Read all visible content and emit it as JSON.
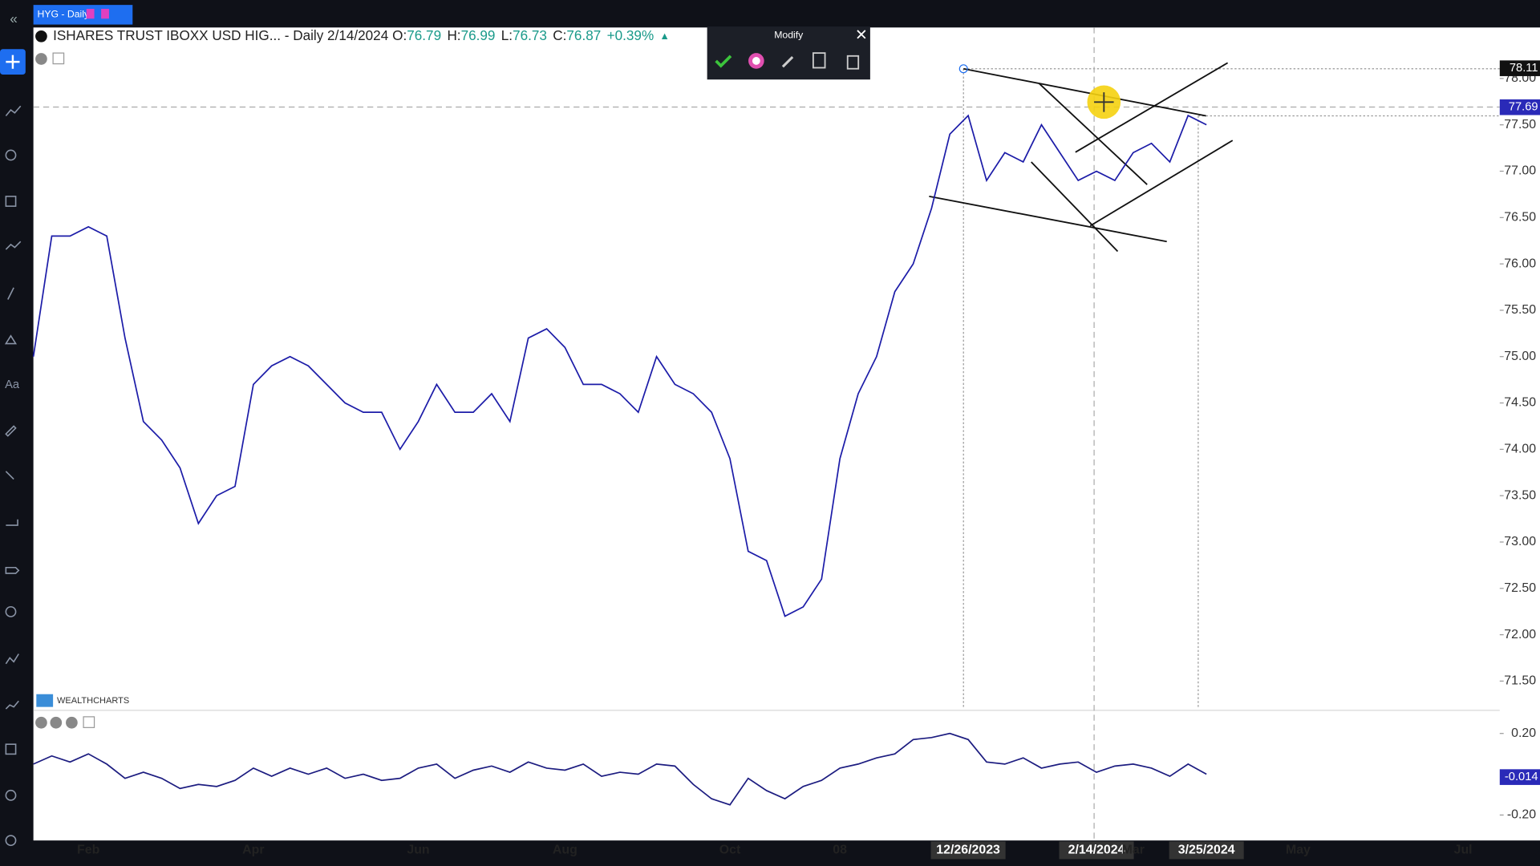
{
  "tab": {
    "title": "HYG - Daily"
  },
  "header": {
    "symbol": "ISHARES TRUST IBOXX USD HIG... - Daily 2/14/2024",
    "ohlc": [
      {
        "label": "O:",
        "value": "76.79"
      },
      {
        "label": "H:",
        "value": "76.99"
      },
      {
        "label": "L:",
        "value": "76.73"
      },
      {
        "label": "C:",
        "value": "76.87"
      }
    ],
    "change": "+0.39%"
  },
  "toolbar": {
    "title": "Modify"
  },
  "watermark": "WEALTHCHARTS",
  "chart_data": [
    {
      "type": "line",
      "categories": [
        null,
        null,
        null,
        "Feb",
        null,
        null,
        null,
        null,
        null,
        null,
        null,
        null,
        "Apr",
        null,
        null,
        null,
        null,
        null,
        null,
        null,
        null,
        "Jun",
        null,
        null,
        null,
        null,
        null,
        null,
        null,
        "Aug",
        null,
        null,
        null,
        null,
        null,
        null,
        null,
        null,
        "Oct",
        null,
        null,
        null,
        null,
        null,
        "08",
        null,
        null,
        null,
        null,
        null,
        null,
        "12/26/2023",
        null,
        null,
        null,
        null,
        null,
        null,
        "2/14/2024",
        null,
        "Mar",
        null,
        null,
        null,
        "3/25/2024",
        null,
        null,
        null,
        null,
        "May",
        null,
        null,
        null,
        null,
        null,
        null,
        null,
        null,
        "Jul",
        null
      ],
      "series": [
        {
          "name": "HYG",
          "color": "#1c1ca8",
          "values": [
            75.0,
            76.3,
            76.3,
            76.4,
            76.3,
            75.2,
            74.3,
            74.1,
            73.8,
            73.2,
            73.5,
            73.6,
            74.7,
            74.9,
            75.0,
            74.9,
            74.7,
            74.5,
            74.4,
            74.4,
            74.0,
            74.3,
            74.7,
            74.4,
            74.4,
            74.6,
            74.3,
            75.2,
            75.3,
            75.1,
            74.7,
            74.7,
            74.6,
            74.4,
            75.0,
            74.7,
            74.6,
            74.4,
            73.9,
            72.9,
            72.8,
            72.2,
            72.3,
            72.6,
            73.9,
            74.6,
            75.0,
            75.7,
            76.0,
            76.6,
            77.4,
            77.6,
            76.9,
            77.2,
            77.1,
            77.5,
            77.2,
            76.9,
            77.0,
            76.9,
            77.2,
            77.3,
            77.1,
            77.6,
            77.5,
            null,
            null,
            null,
            null,
            null,
            null,
            null,
            null,
            null,
            null,
            null,
            null,
            null,
            null,
            null
          ]
        }
      ],
      "ylim": [
        71.2,
        78.55
      ],
      "yticks": [
        {
          "value": 71.5,
          "label": "71.50"
        },
        {
          "value": 72,
          "label": "72.00"
        },
        {
          "value": 72.5,
          "label": "72.50"
        },
        {
          "value": 73,
          "label": "73.00"
        },
        {
          "value": 73.5,
          "label": "73.50"
        },
        {
          "value": 74,
          "label": "74.00"
        },
        {
          "value": 74.5,
          "label": "74.50"
        },
        {
          "value": 75,
          "label": "75.00"
        },
        {
          "value": 75.5,
          "label": "75.50"
        },
        {
          "value": 76,
          "label": "76.00"
        },
        {
          "value": 76.5,
          "label": "76.50"
        },
        {
          "value": 77,
          "label": "77.00"
        },
        {
          "value": 77.5,
          "label": "77.50"
        },
        {
          "value": 78,
          "label": "78.00"
        }
      ],
      "price_marks": [
        78.11,
        77.69
      ]
    },
    {
      "type": "line",
      "series": [
        {
          "name": "Oscillator",
          "color": "#1c1c80",
          "values": [
            0.05,
            0.09,
            0.06,
            0.1,
            0.05,
            -0.02,
            0.01,
            -0.02,
            -0.07,
            -0.05,
            -0.06,
            -0.03,
            0.03,
            -0.01,
            0.03,
            0.0,
            0.03,
            -0.02,
            0.0,
            -0.03,
            -0.02,
            0.03,
            0.05,
            -0.02,
            0.02,
            0.04,
            0.01,
            0.06,
            0.03,
            0.02,
            0.05,
            -0.01,
            0.01,
            0.0,
            0.05,
            0.04,
            -0.05,
            -0.12,
            -0.15,
            -0.02,
            -0.08,
            -0.12,
            -0.06,
            -0.03,
            0.03,
            0.05,
            0.08,
            0.1,
            0.17,
            0.18,
            0.2,
            0.17,
            0.06,
            0.05,
            0.08,
            0.03,
            0.05,
            0.06,
            0.01,
            0.04,
            0.05,
            0.03,
            -0.01,
            0.05,
            0.0,
            null,
            null,
            null,
            null,
            null,
            null,
            null,
            null,
            null,
            null,
            null,
            null,
            null,
            null,
            null
          ]
        }
      ],
      "ylim": [
        -0.32,
        0.306
      ],
      "yticks": [
        {
          "value": -0.2,
          "label": "-0.20"
        },
        {
          "value": 0.2,
          "label": "0.20"
        }
      ],
      "price_marks": [
        -0.014
      ]
    }
  ]
}
